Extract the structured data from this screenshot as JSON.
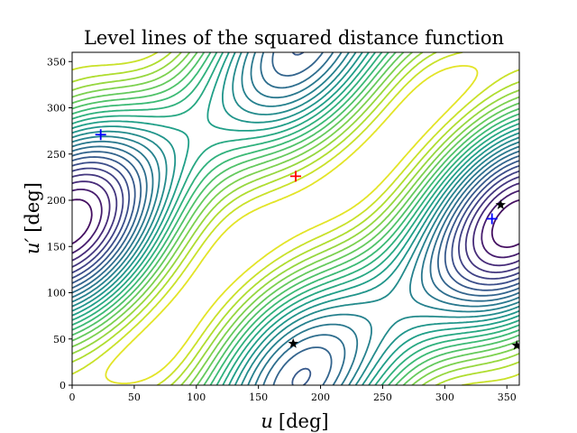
{
  "chart_data": {
    "type": "contour",
    "title": "Level lines of the squared distance function",
    "xlabel_var": "u",
    "xlabel_unit": "[deg]",
    "ylabel_var": "u′",
    "ylabel_unit": "[deg]",
    "xlim": [
      0,
      360
    ],
    "ylim": [
      0,
      360
    ],
    "xticks": [
      0,
      50,
      100,
      150,
      200,
      250,
      300,
      350
    ],
    "yticks": [
      0,
      50,
      100,
      150,
      200,
      250,
      300,
      350
    ],
    "grid": false,
    "colormap": "viridis",
    "contour_levels": 24,
    "markers": [
      {
        "kind": "plus",
        "color": "#ff0000",
        "x": 180,
        "y": 226
      },
      {
        "kind": "plus",
        "color": "#0000ff",
        "x": 23,
        "y": 271
      },
      {
        "kind": "plus",
        "color": "#0000ff",
        "x": 338,
        "y": 180
      },
      {
        "kind": "star",
        "color": "#000000",
        "x": 178,
        "y": 45
      },
      {
        "kind": "star",
        "color": "#000000",
        "x": 345,
        "y": 195
      },
      {
        "kind": "star",
        "color": "#000000",
        "x": 358,
        "y": 43
      }
    ]
  }
}
